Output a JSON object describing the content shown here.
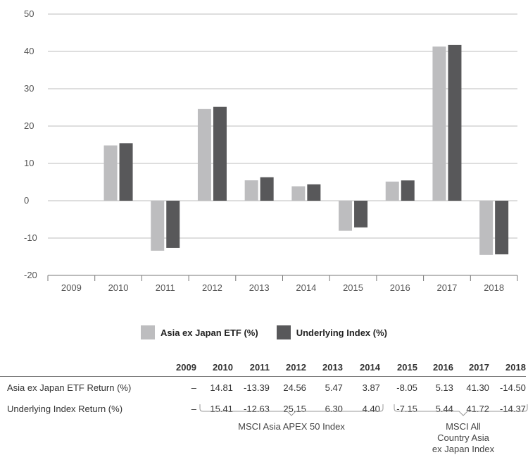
{
  "chart_data": {
    "type": "bar",
    "categories": [
      "2009",
      "2010",
      "2011",
      "2012",
      "2013",
      "2014",
      "2015",
      "2016",
      "2017",
      "2018"
    ],
    "series": [
      {
        "name": "Asia ex Japan ETF (%)",
        "color": "#bdbdbf",
        "values": [
          null,
          14.81,
          -13.39,
          24.56,
          5.47,
          3.87,
          -8.05,
          5.13,
          41.3,
          -14.5
        ]
      },
      {
        "name": "Underlying Index (%)",
        "color": "#58585a",
        "values": [
          null,
          15.41,
          -12.63,
          25.15,
          6.3,
          4.4,
          -7.15,
          5.44,
          41.72,
          -14.37
        ]
      }
    ],
    "ylim": [
      -20,
      50
    ],
    "yticks": [
      "50",
      "40",
      "30",
      "20",
      "10",
      "0",
      "-10",
      "-20"
    ],
    "grid": true,
    "legend_position": "bottom"
  },
  "table": {
    "years": [
      "2009",
      "2010",
      "2011",
      "2012",
      "2013",
      "2014",
      "2015",
      "2016",
      "2017",
      "2018"
    ],
    "rows": [
      {
        "label": "Asia ex Japan ETF Return (%)",
        "values": [
          "–",
          "14.81",
          "-13.39",
          "24.56",
          "5.47",
          "3.87",
          "-8.05",
          "5.13",
          "41.30",
          "-14.50"
        ]
      },
      {
        "label": "Underlying Index Return (%)",
        "values": [
          "–",
          "15.41",
          "-12.63",
          "25.15",
          "6.30",
          "4.40",
          "-7.15",
          "5.44",
          "41.72",
          "-14.37"
        ]
      }
    ]
  },
  "index_groups": {
    "first": "MSCI Asia APEX 50 Index",
    "second_line1": "MSCI All",
    "second_line2": "Country Asia",
    "second_line3": "ex Japan Index"
  }
}
